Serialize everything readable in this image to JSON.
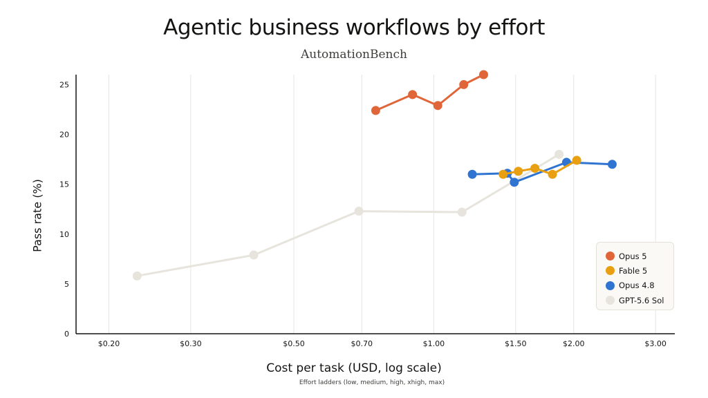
{
  "chart_data": {
    "type": "line",
    "title": "Agentic business workflows by effort",
    "subtitle": "AutomationBench",
    "xlabel": "Cost per task (USD, log scale)",
    "xsublabel": "Effort ladders (low, medium, high, xhigh, max)",
    "ylabel": "Pass rate (%)",
    "x_scale": "log",
    "xlim": [
      0.17,
      3.3
    ],
    "ylim": [
      0,
      26
    ],
    "x_ticks": [
      0.2,
      0.3,
      0.5,
      0.7,
      1.0,
      1.5,
      2.0,
      3.0
    ],
    "x_tick_labels": [
      "$0.20",
      "$0.30",
      "$0.50",
      "$0.70",
      "$1.00",
      "$1.50",
      "$2.00",
      "$3.00"
    ],
    "y_ticks": [
      0,
      5,
      10,
      15,
      20,
      25
    ],
    "y_tick_labels": [
      "0",
      "5",
      "10",
      "15",
      "20",
      "25"
    ],
    "grid": "vertical",
    "legend_position": "lower-right",
    "series": [
      {
        "name": "GPT-5.6 Sol",
        "color": "#e6e4dc",
        "points": [
          {
            "x": 0.23,
            "y": 5.8
          },
          {
            "x": 0.41,
            "y": 7.9
          },
          {
            "x": 0.69,
            "y": 12.3
          },
          {
            "x": 1.15,
            "y": 12.2
          },
          {
            "x": 1.86,
            "y": 18.0
          }
        ]
      },
      {
        "name": "Opus 4.8",
        "color": "#2f74d0",
        "points": [
          {
            "x": 1.21,
            "y": 16.0
          },
          {
            "x": 1.44,
            "y": 16.1
          },
          {
            "x": 1.49,
            "y": 15.2
          },
          {
            "x": 1.93,
            "y": 17.2
          },
          {
            "x": 2.42,
            "y": 17.0
          }
        ]
      },
      {
        "name": "Fable 5",
        "color": "#e8a012",
        "points": [
          {
            "x": 1.41,
            "y": 16.0
          },
          {
            "x": 1.52,
            "y": 16.3
          },
          {
            "x": 1.65,
            "y": 16.6
          },
          {
            "x": 1.8,
            "y": 16.0
          },
          {
            "x": 2.03,
            "y": 17.4
          }
        ]
      },
      {
        "name": "Opus 5",
        "color": "#e0663a",
        "points": [
          {
            "x": 0.75,
            "y": 22.4
          },
          {
            "x": 0.9,
            "y": 24.0
          },
          {
            "x": 1.02,
            "y": 22.9
          },
          {
            "x": 1.16,
            "y": 25.0
          },
          {
            "x": 1.28,
            "y": 26.0
          }
        ]
      }
    ],
    "legend": [
      {
        "name": "Opus 5",
        "color": "#e0663a"
      },
      {
        "name": "Fable 5",
        "color": "#e8a012"
      },
      {
        "name": "Opus 4.8",
        "color": "#2f74d0"
      },
      {
        "name": "GPT-5.6 Sol",
        "color": "#e6e4dc"
      }
    ]
  }
}
